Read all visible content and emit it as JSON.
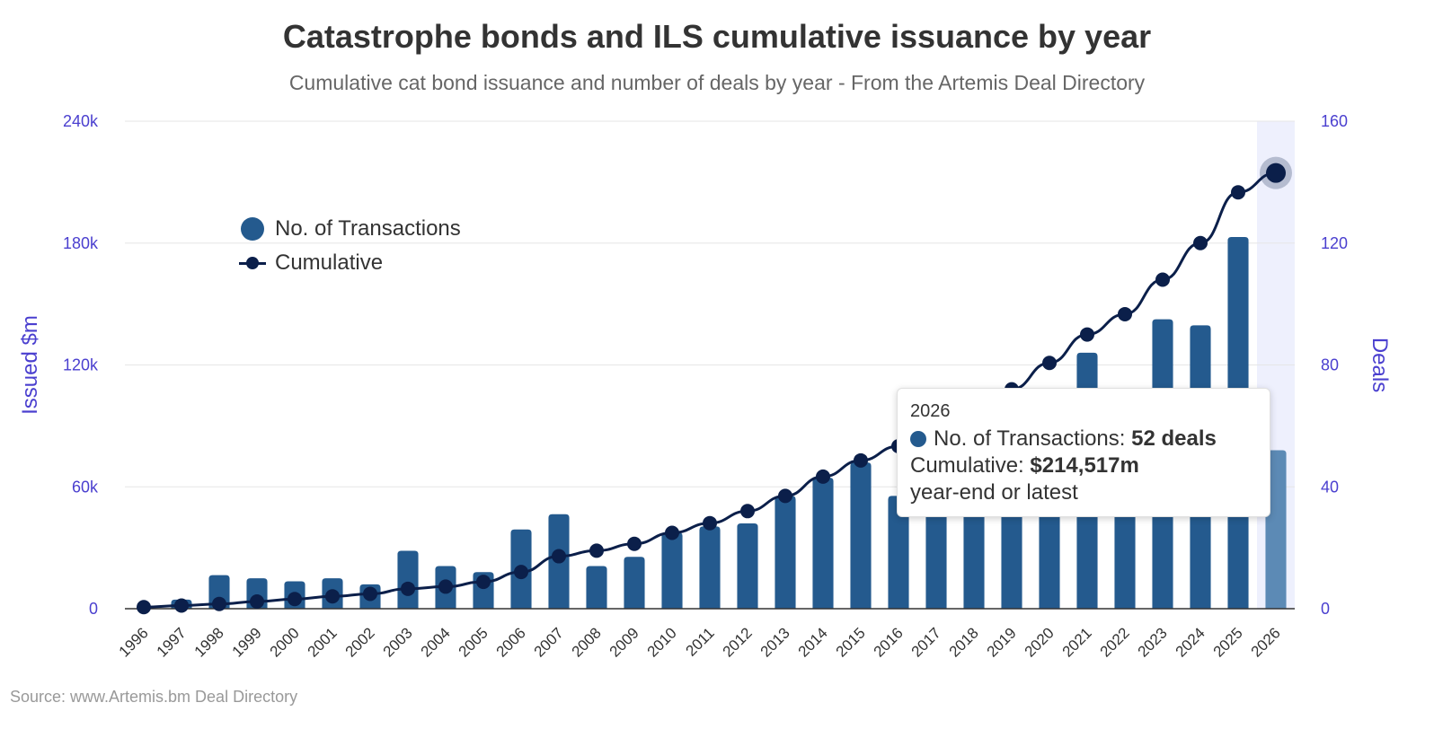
{
  "chart_data": {
    "type": "bar+line",
    "title": "Catastrophe bonds and ILS cumulative issuance by year",
    "subtitle": "Cumulative cat bond issuance and number of deals by year - From the Artemis Deal Directory",
    "source": "Source: www.Artemis.bm Deal Directory",
    "categories": [
      "1996",
      "1997",
      "1998",
      "1999",
      "2000",
      "2001",
      "2002",
      "2003",
      "2004",
      "2005",
      "2006",
      "2007",
      "2008",
      "2009",
      "2010",
      "2011",
      "2012",
      "2013",
      "2014",
      "2015",
      "2016",
      "2017",
      "2018",
      "2019",
      "2020",
      "2021",
      "2022",
      "2023",
      "2024",
      "2025",
      "2026"
    ],
    "y_left": {
      "title": "Issued $m",
      "range": [
        0,
        240000
      ],
      "ticks": [
        "0",
        "60k",
        "120k",
        "180k",
        "240k"
      ],
      "tick_values": [
        0,
        60000,
        120000,
        180000,
        240000
      ]
    },
    "y_right": {
      "title": "Deals",
      "range": [
        0,
        160
      ],
      "ticks": [
        "0",
        "40",
        "80",
        "120",
        "160"
      ],
      "tick_values": [
        0,
        40,
        80,
        120,
        160
      ]
    },
    "series": [
      {
        "name": "No. of Transactions",
        "type": "bar",
        "axis": "right",
        "color": "#245a8e",
        "highlight_color": "#5c8ab5",
        "values": [
          0,
          3,
          11,
          10,
          9,
          10,
          8,
          19,
          14,
          12,
          26,
          31,
          14,
          17,
          25,
          27,
          28,
          37,
          43,
          48,
          37,
          55,
          51,
          55,
          56,
          84,
          60,
          95,
          93,
          122,
          52
        ]
      },
      {
        "name": "Cumulative",
        "type": "line",
        "axis": "left",
        "color": "#0b1f4a",
        "values": [
          785,
          1548,
          2334,
          3544,
          4773,
          6095,
          7316,
          9802,
          10860,
          13226,
          18060,
          25842,
          28557,
          31934,
          37346,
          42118,
          48040,
          55512,
          65015,
          73000,
          80000,
          90000,
          100000,
          108000,
          121000,
          135000,
          145000,
          162000,
          180000,
          205000,
          214517
        ]
      }
    ],
    "highlight_category": "2026",
    "legend": {
      "position": "top-left",
      "items": [
        "No. of Transactions",
        "Cumulative"
      ]
    },
    "grid": true,
    "tooltip": {
      "year": "2026",
      "line1_label": "No. of Transactions: ",
      "line1_value": "52 deals",
      "line2_label": "Cumulative: ",
      "line2_value": "$214,517m",
      "line3": "year-end or latest"
    }
  }
}
